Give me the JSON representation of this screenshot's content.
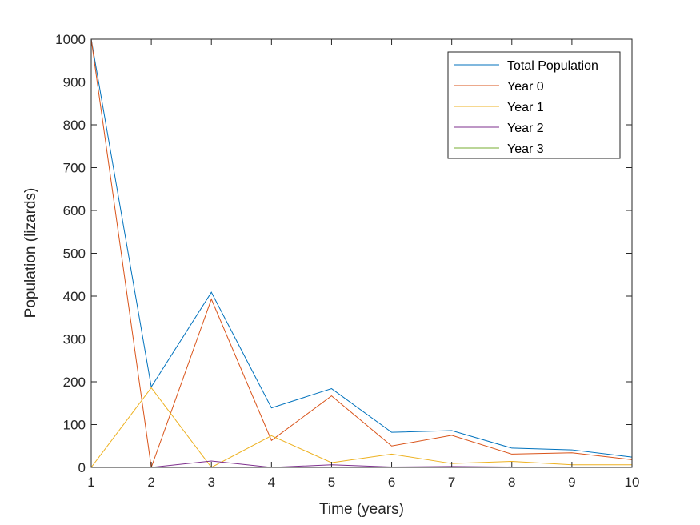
{
  "chart_data": {
    "type": "line",
    "title": "",
    "xlabel": "Time (years)",
    "ylabel": "Population (lizards)",
    "xlim": [
      1,
      10
    ],
    "ylim": [
      0,
      1000
    ],
    "xticks": [
      "1",
      "2",
      "3",
      "4",
      "5",
      "6",
      "7",
      "8",
      "9",
      "10"
    ],
    "yticks": [
      "0",
      "100",
      "200",
      "300",
      "400",
      "500",
      "600",
      "700",
      "800",
      "900",
      "1000"
    ],
    "grid": false,
    "legend_position": "top-right",
    "x": [
      1,
      2,
      3,
      4,
      5,
      6,
      7,
      8,
      9,
      10
    ],
    "series": [
      {
        "name": "Total Population",
        "color": "#0072BD",
        "values": [
          1000,
          188,
          409,
          139,
          184,
          82,
          86,
          45,
          41,
          24
        ]
      },
      {
        "name": "Year 0",
        "color": "#D95319",
        "values": [
          1000,
          0,
          393,
          63,
          167,
          50,
          75,
          31,
          34,
          18
        ]
      },
      {
        "name": "Year 1",
        "color": "#EDB120",
        "values": [
          0,
          186,
          0,
          74,
          11,
          31,
          9,
          14,
          6,
          6
        ]
      },
      {
        "name": "Year 2",
        "color": "#7E2F8E",
        "values": [
          0,
          0,
          15,
          0,
          6,
          1,
          2,
          1,
          1,
          0
        ]
      },
      {
        "name": "Year 3",
        "color": "#77AC30",
        "values": [
          0,
          0,
          0,
          1,
          0,
          0,
          0,
          0,
          0,
          0
        ]
      }
    ]
  }
}
